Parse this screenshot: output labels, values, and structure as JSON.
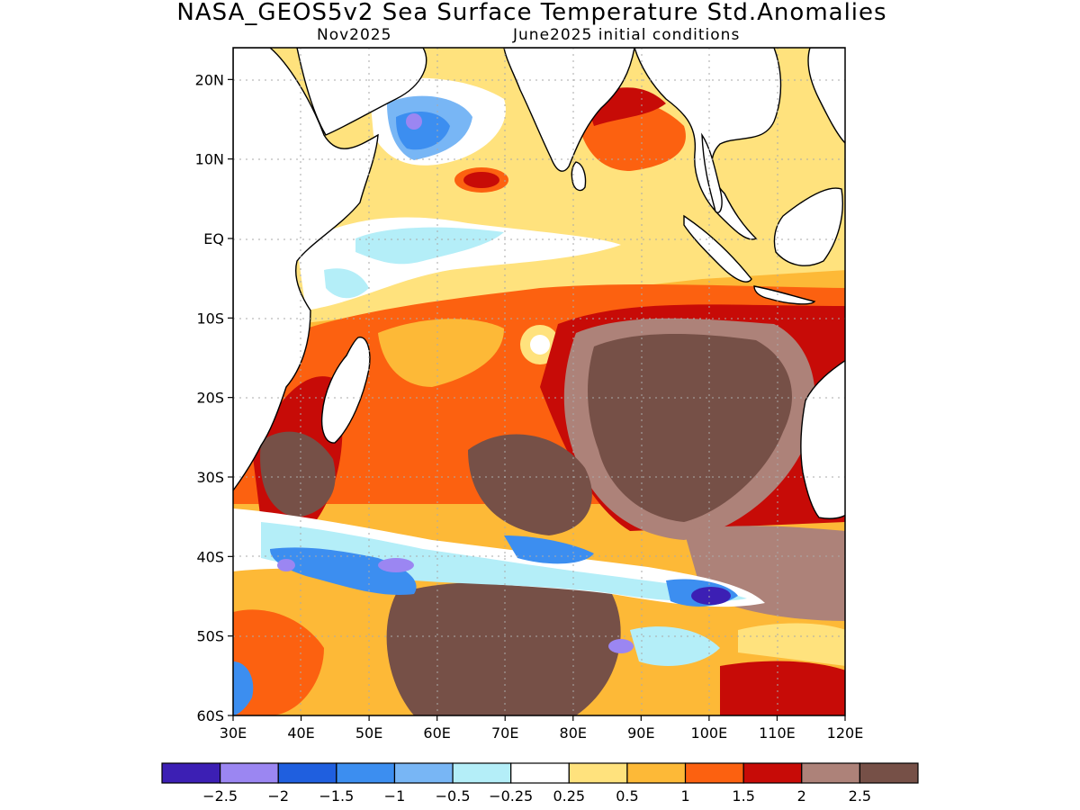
{
  "title": "NASA_GEOS5v2 Sea Surface Temperature Std.Anomalies",
  "subtitle_left": "Nov2025",
  "subtitle_right": "June2025 initial conditions",
  "map": {
    "projection": "equirectangular",
    "lon_range": [
      30,
      120
    ],
    "lat_range": [
      -60,
      24
    ],
    "lat_ticks": [
      {
        "lat": 20,
        "label": "20N"
      },
      {
        "lat": 10,
        "label": "10N"
      },
      {
        "lat": 0,
        "label": "EQ"
      },
      {
        "lat": -10,
        "label": "10S"
      },
      {
        "lat": -20,
        "label": "20S"
      },
      {
        "lat": -30,
        "label": "30S"
      },
      {
        "lat": -40,
        "label": "40S"
      },
      {
        "lat": -50,
        "label": "50S"
      },
      {
        "lat": -60,
        "label": "60S"
      }
    ],
    "lon_ticks": [
      {
        "lon": 30,
        "label": "30E"
      },
      {
        "lon": 40,
        "label": "40E"
      },
      {
        "lon": 50,
        "label": "50E"
      },
      {
        "lon": 60,
        "label": "60E"
      },
      {
        "lon": 70,
        "label": "70E"
      },
      {
        "lon": 80,
        "label": "80E"
      },
      {
        "lon": 90,
        "label": "90E"
      },
      {
        "lon": 100,
        "label": "100E"
      },
      {
        "lon": 110,
        "label": "110E"
      },
      {
        "lon": 120,
        "label": "120E"
      }
    ],
    "grid": "dotted"
  },
  "colorbar": {
    "colors": [
      "#3c1fb4",
      "#9b86f2",
      "#1f5fdf",
      "#3c8ef0",
      "#78b6f5",
      "#b4eef8",
      "#ffffff",
      "#ffe27d",
      "#fdb937",
      "#fc6110",
      "#c70b07",
      "#ad8279",
      "#765047"
    ],
    "labels": [
      "-2.5",
      "-2",
      "-1.5",
      "-1",
      "-0.5",
      "-0.25",
      "0.25",
      "0.5",
      "1",
      "1.5",
      "2",
      "2.5"
    ]
  }
}
